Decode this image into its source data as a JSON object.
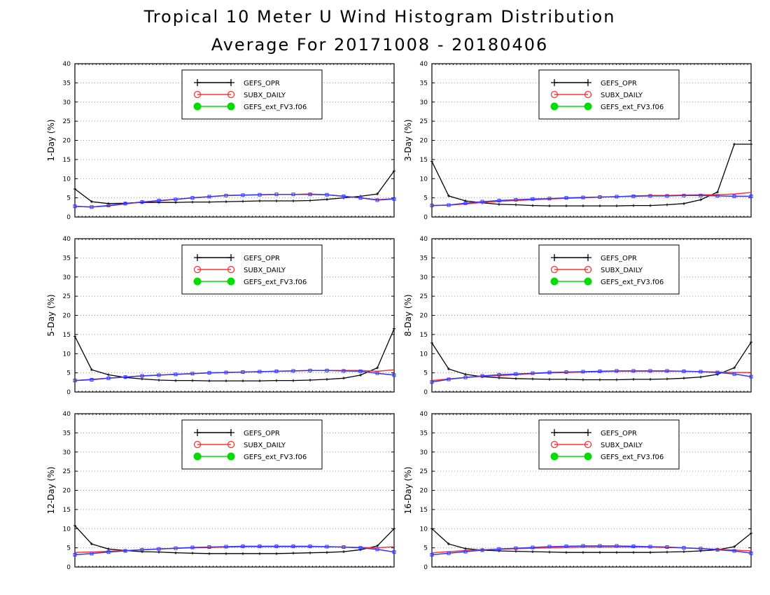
{
  "header": {
    "title": "Tropical 10 Meter U Wind Histogram Distribution",
    "subtitle": "Average For 20171008 - 20180406"
  },
  "colors": {
    "GEFS_OPR": "#000000",
    "SUBX_DAILY": "#ff3333",
    "GEFS_ext_FV3.f06": "#00dd00",
    "overlay_line": "#3333ff"
  },
  "chart_data": [
    {
      "type": "line",
      "ylabel": "1-Day (%)",
      "ylim": [
        0,
        40
      ],
      "yticks": [
        0,
        5,
        10,
        15,
        20,
        25,
        30,
        35,
        40
      ],
      "grid": true,
      "legend_position": "top-center",
      "x": [
        1,
        2,
        3,
        4,
        5,
        6,
        7,
        8,
        9,
        10,
        11,
        12,
        13,
        14,
        15,
        16,
        17,
        18,
        19,
        20
      ],
      "series": [
        {
          "name": "GEFS_OPR",
          "values": [
            7.3,
            4.0,
            3.5,
            3.6,
            3.8,
            3.8,
            3.8,
            3.9,
            3.9,
            4.0,
            4.1,
            4.2,
            4.2,
            4.2,
            4.3,
            4.6,
            5.0,
            5.4,
            6.0,
            12.0
          ]
        },
        {
          "name": "SUBX_DAILY",
          "values": [
            2.8,
            2.6,
            2.9,
            3.4,
            3.9,
            4.2,
            4.6,
            5.0,
            5.3,
            5.6,
            5.7,
            5.8,
            5.9,
            5.9,
            6.0,
            5.8,
            5.4,
            5.0,
            4.5,
            4.8
          ]
        },
        {
          "name": "GEFS_ext_FV3.f06",
          "values": [
            2.8,
            2.6,
            3.0,
            3.5,
            3.9,
            4.3,
            4.6,
            5.0,
            5.3,
            5.6,
            5.7,
            5.8,
            5.9,
            5.9,
            5.9,
            5.8,
            5.4,
            5.0,
            4.4,
            4.7
          ]
        }
      ]
    },
    {
      "type": "line",
      "ylabel": "3-Day (%)",
      "ylim": [
        0,
        40
      ],
      "yticks": [
        0,
        5,
        10,
        15,
        20,
        25,
        30,
        35,
        40
      ],
      "grid": true,
      "legend_position": "top-center",
      "x": [
        1,
        2,
        3,
        4,
        5,
        6,
        7,
        8,
        9,
        10,
        11,
        12,
        13,
        14,
        15,
        16,
        17,
        18,
        19,
        20
      ],
      "series": [
        {
          "name": "GEFS_OPR",
          "values": [
            14.5,
            5.5,
            4.2,
            3.7,
            3.3,
            3.2,
            3.0,
            2.9,
            2.9,
            2.9,
            2.9,
            2.9,
            3.0,
            3.0,
            3.2,
            3.5,
            4.5,
            6.5,
            19.0,
            19.0
          ]
        },
        {
          "name": "SUBX_DAILY",
          "values": [
            3.0,
            3.1,
            3.4,
            3.8,
            4.1,
            4.3,
            4.5,
            4.7,
            4.9,
            5.0,
            5.2,
            5.3,
            5.5,
            5.6,
            5.6,
            5.7,
            5.8,
            5.8,
            6.0,
            6.4
          ]
        },
        {
          "name": "GEFS_ext_FV3.f06",
          "values": [
            3.0,
            3.1,
            3.6,
            4.0,
            4.3,
            4.5,
            4.7,
            4.8,
            5.0,
            5.1,
            5.2,
            5.3,
            5.4,
            5.5,
            5.5,
            5.6,
            5.6,
            5.5,
            5.4,
            5.4
          ]
        }
      ]
    },
    {
      "type": "line",
      "ylabel": "5-Day (%)",
      "ylim": [
        0,
        40
      ],
      "yticks": [
        0,
        5,
        10,
        15,
        20,
        25,
        30,
        35,
        40
      ],
      "grid": true,
      "legend_position": "top-center",
      "x": [
        1,
        2,
        3,
        4,
        5,
        6,
        7,
        8,
        9,
        10,
        11,
        12,
        13,
        14,
        15,
        16,
        17,
        18,
        19,
        20
      ],
      "series": [
        {
          "name": "GEFS_OPR",
          "values": [
            14.5,
            5.8,
            4.5,
            3.8,
            3.4,
            3.1,
            3.0,
            3.0,
            2.9,
            2.9,
            2.9,
            2.9,
            3.0,
            3.0,
            3.1,
            3.3,
            3.6,
            4.4,
            6.3,
            16.5
          ]
        },
        {
          "name": "SUBX_DAILY",
          "values": [
            3.0,
            3.3,
            3.6,
            3.9,
            4.2,
            4.4,
            4.6,
            4.8,
            5.0,
            5.1,
            5.2,
            5.3,
            5.4,
            5.5,
            5.6,
            5.6,
            5.6,
            5.6,
            5.4,
            5.8
          ]
        },
        {
          "name": "GEFS_ext_FV3.f06",
          "values": [
            3.0,
            3.2,
            3.6,
            3.9,
            4.2,
            4.4,
            4.6,
            4.8,
            5.0,
            5.1,
            5.2,
            5.3,
            5.4,
            5.5,
            5.6,
            5.6,
            5.5,
            5.4,
            4.9,
            4.4
          ]
        }
      ]
    },
    {
      "type": "line",
      "ylabel": "8-Day (%)",
      "ylim": [
        0,
        40
      ],
      "yticks": [
        0,
        5,
        10,
        15,
        20,
        25,
        30,
        35,
        40
      ],
      "grid": true,
      "legend_position": "top-center",
      "x": [
        1,
        2,
        3,
        4,
        5,
        6,
        7,
        8,
        9,
        10,
        11,
        12,
        13,
        14,
        15,
        16,
        17,
        18,
        19,
        20
      ],
      "series": [
        {
          "name": "GEFS_OPR",
          "values": [
            12.8,
            6.0,
            4.6,
            4.0,
            3.7,
            3.5,
            3.4,
            3.3,
            3.3,
            3.2,
            3.2,
            3.2,
            3.3,
            3.3,
            3.4,
            3.6,
            3.9,
            4.6,
            6.3,
            13.0
          ]
        },
        {
          "name": "SUBX_DAILY",
          "values": [
            3.0,
            3.4,
            3.8,
            4.1,
            4.3,
            4.5,
            4.8,
            5.0,
            5.1,
            5.2,
            5.3,
            5.4,
            5.4,
            5.4,
            5.4,
            5.4,
            5.3,
            5.2,
            5.1,
            5.1
          ]
        },
        {
          "name": "GEFS_ext_FV3.f06",
          "values": [
            2.6,
            3.3,
            3.8,
            4.2,
            4.5,
            4.7,
            4.9,
            5.1,
            5.2,
            5.3,
            5.4,
            5.5,
            5.5,
            5.5,
            5.5,
            5.4,
            5.3,
            5.1,
            4.7,
            4.0
          ]
        }
      ]
    },
    {
      "type": "line",
      "ylabel": "12-Day (%)",
      "ylim": [
        0,
        40
      ],
      "yticks": [
        0,
        5,
        10,
        15,
        20,
        25,
        30,
        35,
        40
      ],
      "grid": true,
      "legend_position": "top-center",
      "x": [
        1,
        2,
        3,
        4,
        5,
        6,
        7,
        8,
        9,
        10,
        11,
        12,
        13,
        14,
        15,
        16,
        17,
        18,
        19,
        20
      ],
      "series": [
        {
          "name": "GEFS_OPR",
          "values": [
            10.8,
            6.0,
            4.7,
            4.3,
            4.0,
            3.9,
            3.7,
            3.6,
            3.5,
            3.5,
            3.5,
            3.5,
            3.5,
            3.6,
            3.7,
            3.8,
            4.0,
            4.5,
            5.5,
            10.0
          ]
        },
        {
          "name": "SUBX_DAILY",
          "values": [
            3.8,
            3.9,
            4.1,
            4.3,
            4.5,
            4.7,
            4.9,
            5.0,
            5.1,
            5.2,
            5.3,
            5.3,
            5.3,
            5.3,
            5.3,
            5.3,
            5.2,
            5.1,
            5.0,
            5.3
          ]
        },
        {
          "name": "GEFS_ext_FV3.f06",
          "values": [
            3.2,
            3.5,
            3.9,
            4.2,
            4.5,
            4.7,
            4.9,
            5.1,
            5.2,
            5.3,
            5.4,
            5.4,
            5.4,
            5.4,
            5.4,
            5.3,
            5.2,
            5.0,
            4.6,
            3.9
          ]
        }
      ]
    },
    {
      "type": "line",
      "ylabel": "16-Day (%)",
      "ylim": [
        0,
        40
      ],
      "yticks": [
        0,
        5,
        10,
        15,
        20,
        25,
        30,
        35,
        40
      ],
      "grid": true,
      "legend_position": "top-center",
      "x": [
        1,
        2,
        3,
        4,
        5,
        6,
        7,
        8,
        9,
        10,
        11,
        12,
        13,
        14,
        15,
        16,
        17,
        18,
        19,
        20
      ],
      "series": [
        {
          "name": "GEFS_OPR",
          "values": [
            10.0,
            6.0,
            4.8,
            4.4,
            4.2,
            4.1,
            4.0,
            3.9,
            3.8,
            3.8,
            3.8,
            3.8,
            3.8,
            3.8,
            3.9,
            4.0,
            4.2,
            4.5,
            5.3,
            8.8
          ]
        },
        {
          "name": "SUBX_DAILY",
          "values": [
            3.7,
            4.0,
            4.3,
            4.5,
            4.6,
            4.8,
            4.9,
            5.0,
            5.1,
            5.2,
            5.2,
            5.2,
            5.2,
            5.2,
            5.1,
            5.0,
            4.8,
            4.6,
            4.4,
            4.2
          ]
        },
        {
          "name": "GEFS_ext_FV3.f06",
          "values": [
            3.2,
            3.6,
            4.0,
            4.4,
            4.7,
            4.9,
            5.1,
            5.3,
            5.4,
            5.5,
            5.5,
            5.5,
            5.4,
            5.3,
            5.2,
            5.0,
            4.8,
            4.5,
            4.2,
            3.6
          ]
        }
      ]
    }
  ]
}
